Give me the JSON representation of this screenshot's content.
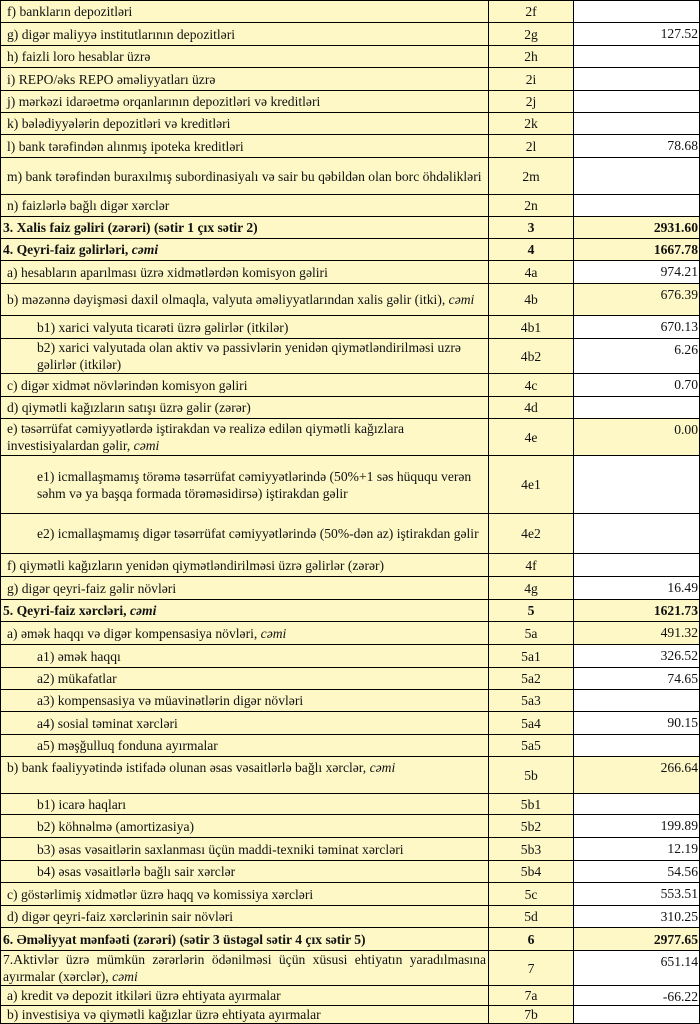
{
  "rows": [
    {
      "label": "f) bankların depozitləri",
      "code": "2f",
      "value": "",
      "indent": 1
    },
    {
      "label": "g) digər maliyyə institutlarının depozitləri",
      "code": "2g",
      "value": "127.52",
      "indent": 1
    },
    {
      "label": "h) faizli loro hesablar üzrə",
      "code": "2h",
      "value": "",
      "indent": 1
    },
    {
      "label": "i) REPO/əks REPO əməliyyatları üzrə",
      "code": "2i",
      "value": "",
      "indent": 1
    },
    {
      "label": "j) mərkəzi idarəetmə orqanlarının depozitləri və kreditləri",
      "code": "2j",
      "value": "",
      "indent": 1
    },
    {
      "label": "k) bələdiyyələrin depozitləri və kreditləri",
      "code": "2k",
      "value": "",
      "indent": 1
    },
    {
      "label": "l) bank tərəfindən alınmış ipoteka kreditləri",
      "code": "2l",
      "value": "78.68",
      "indent": 1
    },
    {
      "label": "m) bank tərəfindən buraxılmış subordinasiyalı və sair bu qəbildən olan borc öhdəlikləri",
      "code": "2m",
      "value": "",
      "indent": 1
    },
    {
      "label": "n) faizlərlə bağlı digər xərclər",
      "code": "2n",
      "value": "",
      "indent": 1
    },
    {
      "label": "3. Xalis faiz gəliri (zərəri) (sətir 1 çıx sətir 2)",
      "code": "3",
      "value": "2931.60",
      "indent": 0,
      "bold": true,
      "highlight": true
    },
    {
      "label": "4. Qeyri-faiz gəlirləri, ",
      "italic": "cəmi",
      "code": "4",
      "value": "1667.78",
      "indent": 0,
      "bold": true,
      "highlight": true
    },
    {
      "label": "a) hesabların aparılması üzrə xidmətlərdən komisyon gəliri",
      "code": "4a",
      "value": "974.21",
      "indent": 1
    },
    {
      "label": "b) məzənnə dəyişməsi daxil olmaqla, valyuta əməliyyatlarından xalis gəlir (itki), ",
      "italic": "cəmi",
      "code": "4b",
      "value": "676.39",
      "indent": 1,
      "highlight": true
    },
    {
      "label": "b1) xarici valyuta ticarəti üzrə gəlirlər (itkilər)",
      "code": "4b1",
      "value": "670.13",
      "indent": 2
    },
    {
      "label": "b2) xarici valyutada olan aktiv və passivlərin yenidən qiymətləndirilməsi uzrə gəlirlər (itkilər)",
      "code": "4b2",
      "value": "6.26",
      "indent": 2
    },
    {
      "label": "c) digər xidmət növlərindən komisyon gəliri",
      "code": "4c",
      "value": "0.70",
      "indent": 1
    },
    {
      "label": "d) qiymətli kağızların satışı üzrə gəlir (zərər)",
      "code": "4d",
      "value": "",
      "indent": 1
    },
    {
      "label": "e) təsərrüfat cəmiyyətlərdə iştirakdan və realizə edilən qiymətli kağızlara investisiyalardan gəlir, ",
      "italic": "cəmi",
      "code": "4e",
      "value": "0.00",
      "indent": 1,
      "highlight": true
    },
    {
      "label": "e1) icmallaşmamış törəmə təsərrüfat cəmiyyətlərində  (50%+1 səs hüququ verən səhm və ya başqa formada törəməsidirsə) iştirakdan gəlir",
      "code": "4e1",
      "value": "",
      "indent": 2
    },
    {
      "label": "e2) icmallaşmamış digər təsərrüfat cəmiyyətlərində (50%-dən az) iştirakdan gəlir",
      "code": "4e2",
      "value": "",
      "indent": 2
    },
    {
      "label": "f) qiymətli kağızların yenidən qiymətləndirilməsi üzrə gəlirlər (zərər)",
      "code": "4f",
      "value": "",
      "indent": 1
    },
    {
      "label": "g) digər qeyri-faiz gəlir növləri",
      "code": "4g",
      "value": "16.49",
      "indent": 1
    },
    {
      "label": "5. Qeyri-faiz xərcləri, ",
      "italic": "cəmi",
      "code": "5",
      "value": "1621.73",
      "indent": 0,
      "bold": true,
      "highlight": true
    },
    {
      "label": "a) əmək haqqı və digər kompensasiya növləri, ",
      "italic": "cəmi",
      "code": "5a",
      "value": "491.32",
      "indent": 1,
      "highlight": true
    },
    {
      "label": "a1) əmək haqqı",
      "code": "5a1",
      "value": "326.52",
      "indent": 2
    },
    {
      "label": "a2) mükafatlar",
      "code": "5a2",
      "value": "74.65",
      "indent": 2
    },
    {
      "label": "a3) kompensasiya və müavinətlərin digər növləri",
      "code": "5a3",
      "value": "",
      "indent": 2
    },
    {
      "label": "a4) sosial təminat xərcləri",
      "code": "5a4",
      "value": "90.15",
      "indent": 2
    },
    {
      "label": "a5) məşğulluq fonduna ayırmalar",
      "code": "5a5",
      "value": "",
      "indent": 2
    },
    {
      "label": "b) bank fəaliyyətində istifadə olunan əsas vəsaitlərlə bağlı xərclər, ",
      "italic": "cəmi",
      "code": "5b",
      "value": "266.64",
      "indent": 1,
      "highlight": true,
      "top": true
    },
    {
      "label": "b1) icarə haqları",
      "code": "5b1",
      "value": "",
      "indent": 2
    },
    {
      "label": "b2) köhnəlmə (amortizasiya)",
      "code": "5b2",
      "value": "199.89",
      "indent": 2
    },
    {
      "label": "b3) əsas vəsaitlərin saxlanması üçün maddi-texniki təminat xərcləri",
      "code": "5b3",
      "value": "12.19",
      "indent": 2
    },
    {
      "label": "b4) əsas vəsaitlərlə bağlı sair xərclər",
      "code": "5b4",
      "value": "54.56",
      "indent": 2
    },
    {
      "label": "c) göstərlimiş xidmətlər üzrə haqq və komissiya xərcləri",
      "code": "5c",
      "value": "553.51",
      "indent": 1
    },
    {
      "label": "d) digər qeyri-faiz xərclərinin sair növləri",
      "code": "5d",
      "value": "310.25",
      "indent": 1
    },
    {
      "label": "6. Əməliyyat mənfəəti (zərəri) (sətir 3 üstəgəl sətir 4 çıx sətir 5)",
      "code": "6",
      "value": "2977.65",
      "indent": 0,
      "bold": true,
      "highlight": true
    },
    {
      "label": "7.Aktivlər üzrə mümkün zərərlərin ödənilməsi üçün xüsusi ehtiyatın yaradılmasına ayırmalar (xərclər), ",
      "italic": "cəmi",
      "code": "7",
      "value": "651.14",
      "indent": 0,
      "justify": true
    },
    {
      "label": "a) kredit və depozit itkiləri üzrə ehtiyata ayırmalar",
      "code": "7a",
      "value": "-66.22",
      "indent": 1
    },
    {
      "label": "b) investisiya və qiymətli kağızlar üzrə ehtiyata ayırmalar",
      "code": "7b",
      "value": "",
      "indent": 1
    }
  ],
  "colors": {
    "highlight": "#fdf8c6",
    "border": "#000000"
  }
}
